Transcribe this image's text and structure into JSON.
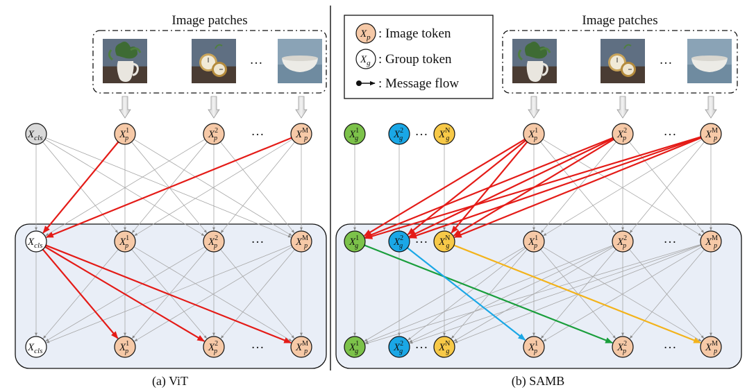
{
  "titles": {
    "patches_left": "Image patches",
    "patches_right": "Image patches",
    "caption_left": "(a) ViT",
    "caption_right": "(b) SAMB",
    "ellipsis": "…"
  },
  "legend": {
    "image_token": ": Image token",
    "group_token": ": Group token",
    "message_flow": ": Message flow"
  },
  "tokens": {
    "cls": {
      "base": "X",
      "sub": "cls",
      "sup": ""
    },
    "p1": {
      "base": "X",
      "sub": "p",
      "sup": "1"
    },
    "p2": {
      "base": "X",
      "sub": "p",
      "sup": "2"
    },
    "pM": {
      "base": "X",
      "sub": "p",
      "sup": "M"
    },
    "g1": {
      "base": "X",
      "sub": "g",
      "sup": "1"
    },
    "g2": {
      "base": "X",
      "sub": "g",
      "sup": "2"
    },
    "gN": {
      "base": "X",
      "sub": "g",
      "sup": "N"
    },
    "p_plain": {
      "base": "X",
      "sub": "p",
      "sup": ""
    },
    "g_plain": {
      "base": "X",
      "sub": "g",
      "sup": ""
    }
  },
  "colors": {
    "image_token": "#f6c9a7",
    "group_green": "#7cc24a",
    "group_blue": "#1aa7e6",
    "group_yellow": "#f7c948",
    "cls_top": "#d9d9d9",
    "cls_white": "#ffffff",
    "panel_bg": "#e9eef7",
    "red": "#e41b17",
    "green": "#1a9e3c",
    "cyan": "#1aa7e6",
    "orange": "#f3b31b",
    "gray": "#9e9e9e"
  }
}
